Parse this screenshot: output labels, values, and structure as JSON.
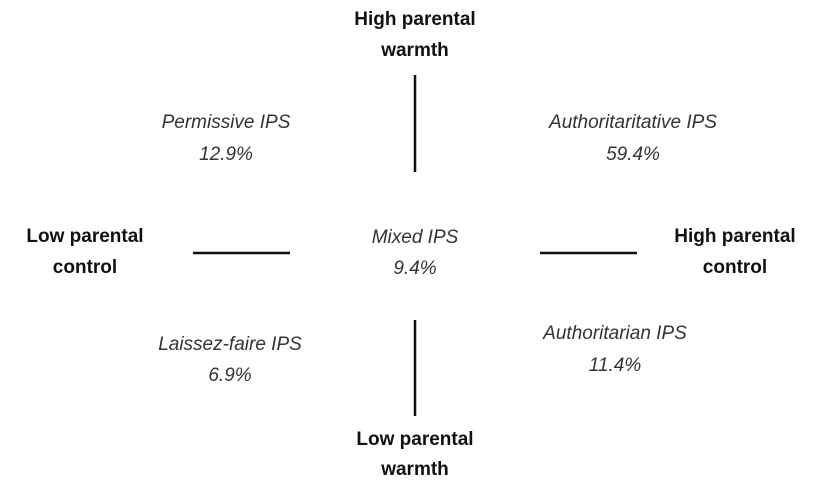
{
  "axes": {
    "top": {
      "lines": [
        "High parental",
        "warmth"
      ]
    },
    "bottom": {
      "lines": [
        "Low parental",
        "warmth"
      ]
    },
    "left": {
      "lines": [
        "Low parental",
        "control"
      ]
    },
    "right": {
      "lines": [
        "High parental",
        "control"
      ]
    }
  },
  "quadrants": [
    {
      "name": "Permissive IPS",
      "share": "12.9%"
    },
    {
      "name": "Authoritaritative IPS",
      "share": "59.4%"
    },
    {
      "name": "Mixed IPS",
      "share": "9.4%"
    },
    {
      "name": "Laissez-faire IPS",
      "share": "6.9%"
    },
    {
      "name": "Authoritarian IPS",
      "share": "11.4%"
    }
  ]
}
